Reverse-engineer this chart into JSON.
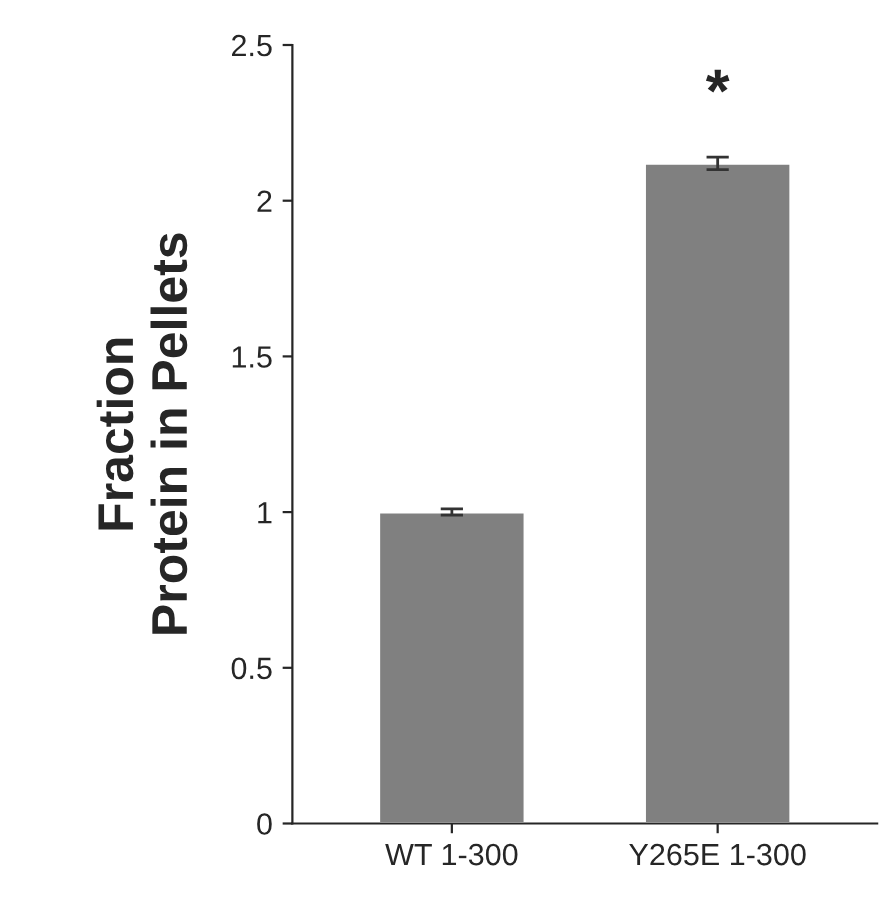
{
  "chart_data": {
    "type": "bar",
    "ylabel": "Fraction\nProtein in Pellets",
    "categories": [
      "WT 1-300",
      "Y265E 1-300"
    ],
    "values": [
      1.0,
      2.12
    ],
    "errors": [
      0.01,
      0.02
    ],
    "color": "#808080",
    "ylim": [
      0,
      2.5
    ],
    "yticks": [
      0,
      0.5,
      1,
      1.5,
      2,
      2.5
    ],
    "grid": false,
    "annotations": [
      "*"
    ]
  }
}
